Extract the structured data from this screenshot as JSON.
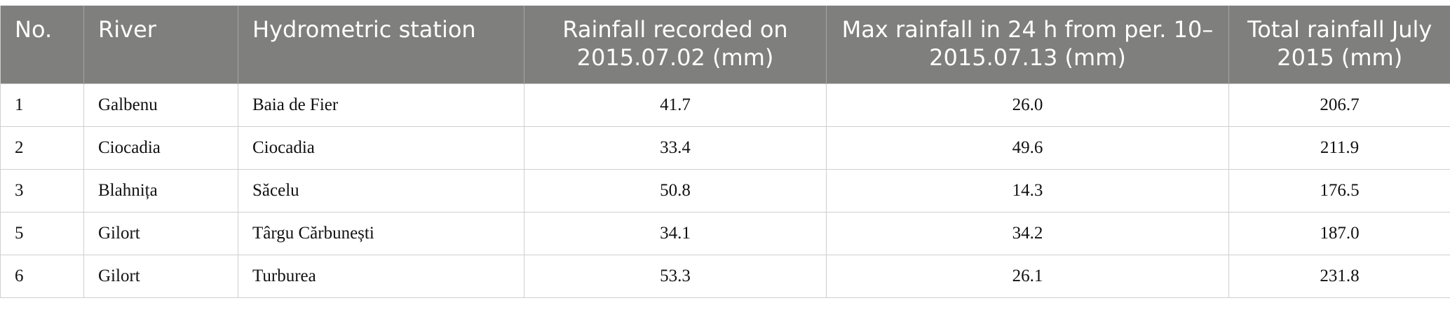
{
  "table": {
    "header": [
      "No.",
      "River",
      "Hydrometric station",
      "Rainfall recorded on 2015.07.02 (mm)",
      "Max rainfall in 24 h from per. 10–2015.07.13 (mm)",
      "Total rainfall July 2015 (mm)"
    ],
    "rows": [
      [
        "1",
        "Galbenu",
        "Baia de Fier",
        "41.7",
        "26.0",
        "206.7"
      ],
      [
        "2",
        "Ciocadia",
        "Ciocadia",
        "33.4",
        "49.6",
        "211.9"
      ],
      [
        "3",
        "Blahnița",
        "Săcelu",
        "50.8",
        "14.3",
        "176.5"
      ],
      [
        "5",
        "Gilort",
        "Târgu Cărbunești",
        "34.1",
        "34.2",
        "187.0"
      ],
      [
        "6",
        "Gilort",
        "Turburea",
        "53.3",
        "26.1",
        "231.8"
      ]
    ]
  }
}
